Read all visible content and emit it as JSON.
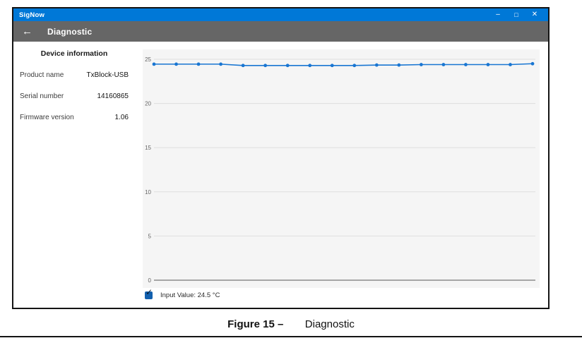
{
  "colors": {
    "titlebar": "#0078d7",
    "appbar": "#666666",
    "line": "#1976d2",
    "chart_bg": "#f5f5f5",
    "grid": "#dedede",
    "zero_line": "#8c8c8c",
    "checkbox": "#1260ae"
  },
  "titlebar": {
    "app_title": "SigNow",
    "minimize_icon": "–",
    "maximize_icon": "□",
    "close_icon": "✕"
  },
  "appbar": {
    "back_icon": "←",
    "title": "Diagnostic"
  },
  "device_info": {
    "title": "Device information",
    "rows": [
      {
        "label": "Product name",
        "value": "TxBlock-USB"
      },
      {
        "label": "Serial number",
        "value": "14160865"
      },
      {
        "label": "Firmware version",
        "value": "1.06"
      }
    ]
  },
  "legend": {
    "checkmark_icon": "✓",
    "label": "Input Value: 24.5 °C",
    "checked": true
  },
  "caption": {
    "figure_label": "Figure 15 –",
    "title": "Diagnostic"
  },
  "chart_data": {
    "type": "line",
    "title": "",
    "xlabel": "",
    "ylabel": "",
    "ylim": [
      0,
      25
    ],
    "yticks": [
      25,
      20,
      15,
      10,
      5,
      0
    ],
    "x_tick_labels_visible": false,
    "grid": true,
    "legend_position": "bottom",
    "series": [
      {
        "name": "Input Value (°C)",
        "values": [
          24.45,
          24.45,
          24.45,
          24.45,
          24.3,
          24.3,
          24.3,
          24.3,
          24.3,
          24.3,
          24.35,
          24.35,
          24.4,
          24.4,
          24.4,
          24.4,
          24.4,
          24.5
        ]
      }
    ]
  }
}
